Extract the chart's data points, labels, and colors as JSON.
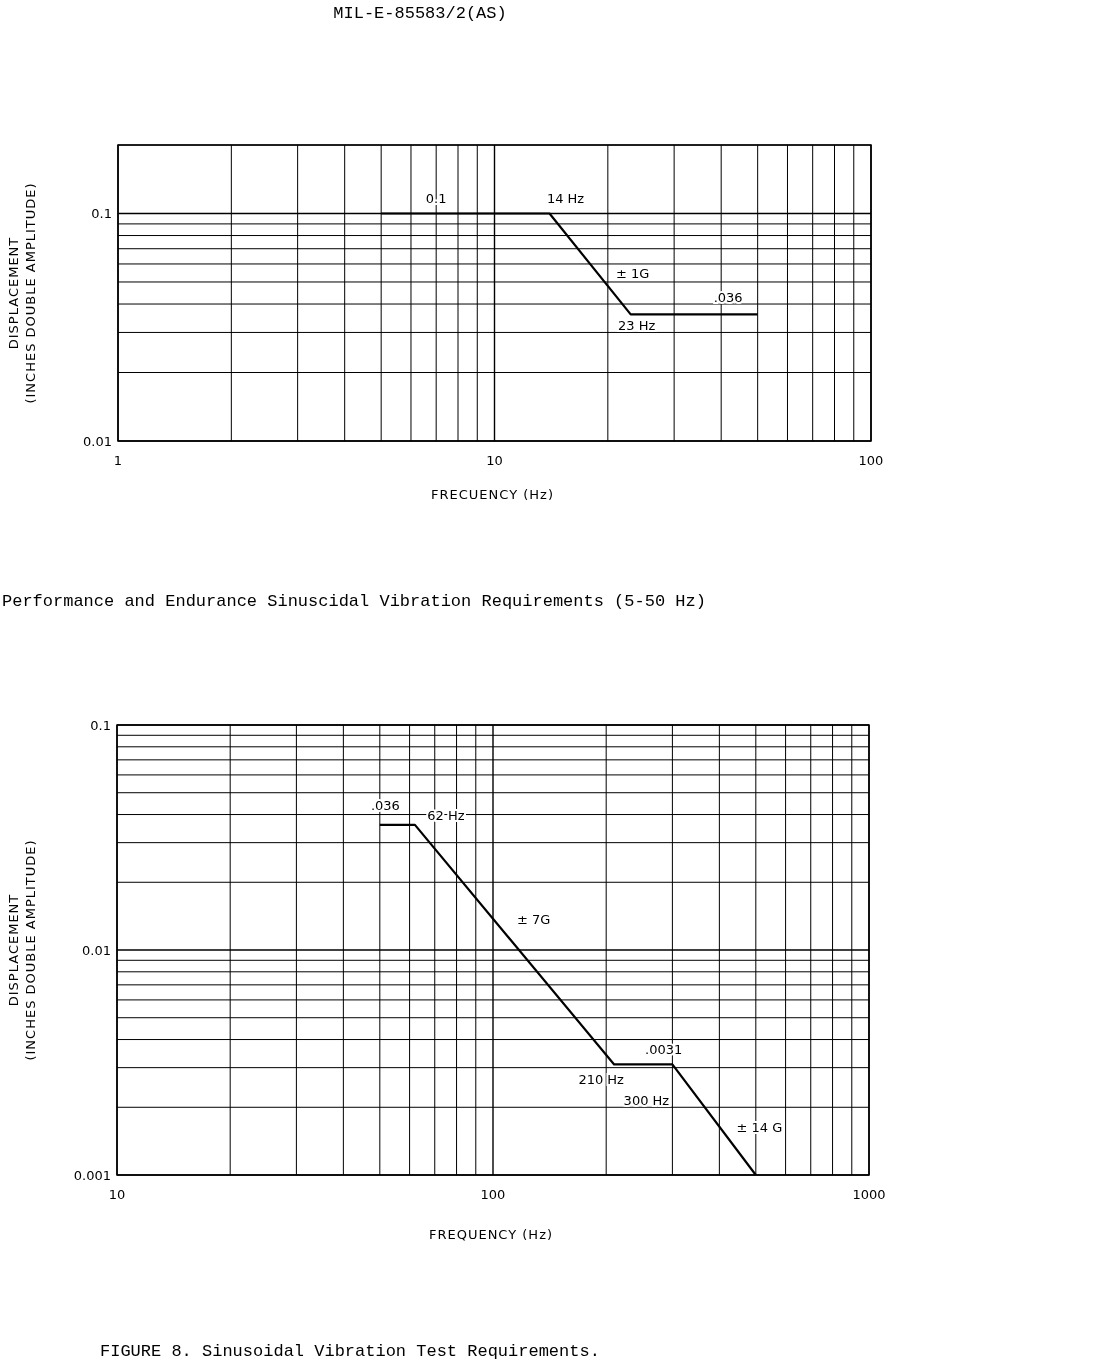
{
  "chart_data": [
    {
      "type": "line",
      "annotations": [
        "MIL-E-85583/2(AS)",
        "Performance and Endurance Sinuscidal Vibration Requirements (5-50 Hz)",
        {
          "text": "0.1",
          "x": 7,
          "y": 0.1
        },
        {
          "text": "14 Hz",
          "x": 14,
          "y": 0.1
        },
        {
          "text": "± 1G",
          "x": 18,
          "y": 0.06
        },
        {
          "text": ".036",
          "x": 40,
          "y": 0.036
        },
        {
          "text": "23 Hz",
          "x": 23,
          "y": 0.036
        }
      ],
      "xlabel": "FRECUENCY (Hz)",
      "ylabel": "DISPLACEMENT (INCHES DOUBLE AMPLITUDE)",
      "log": "xy",
      "grid": true,
      "xlim": [
        1,
        100
      ],
      "xticks": [
        1,
        10,
        100
      ],
      "ylim": [
        0.01,
        0.2
      ],
      "yticks": [
        0.01,
        0.1
      ],
      "series": [
        {
          "color": "#000000",
          "x": [
            5,
            14,
            23,
            50
          ],
          "values": [
            0.1,
            0.1,
            0.036,
            0.036
          ]
        }
      ]
    },
    {
      "type": "line",
      "annotations": [
        "FIGURE 8.  Sinusoidal Vibration Test Requirements.",
        {
          "text": ".036",
          "x": 55,
          "y": 0.036
        },
        {
          "text": "62 Hz",
          "x": 62,
          "y": 0.036
        },
        {
          "text": "± 7G",
          "x": 110,
          "y": 0.0114
        },
        {
          "text": ".0031",
          "x": 250,
          "y": 0.0031
        },
        {
          "text": "210 Hz",
          "x": 210,
          "y": 0.0031
        },
        {
          "text": "300 Hz",
          "x": 300,
          "y": 0.0031
        },
        {
          "text": "± 14 G",
          "x": 420,
          "y": 0.00147
        }
      ],
      "xlabel": "FREQUENCY (Hz)",
      "ylabel": "DISPLACEMENT (INCHES DOUBLE AMPLITUDE)",
      "log": "xy",
      "grid": true,
      "xlim": [
        10,
        1000
      ],
      "xticks": [
        10,
        100,
        1000
      ],
      "ylim": [
        0.001,
        0.1
      ],
      "yticks": [
        0.001,
        0.01,
        0.1
      ],
      "series": [
        {
          "color": "#000000",
          "x": [
            50,
            62,
            210,
            300,
            500
          ],
          "values": [
            0.036,
            0.036,
            0.0031,
            0.0031,
            0.001
          ]
        }
      ]
    }
  ]
}
